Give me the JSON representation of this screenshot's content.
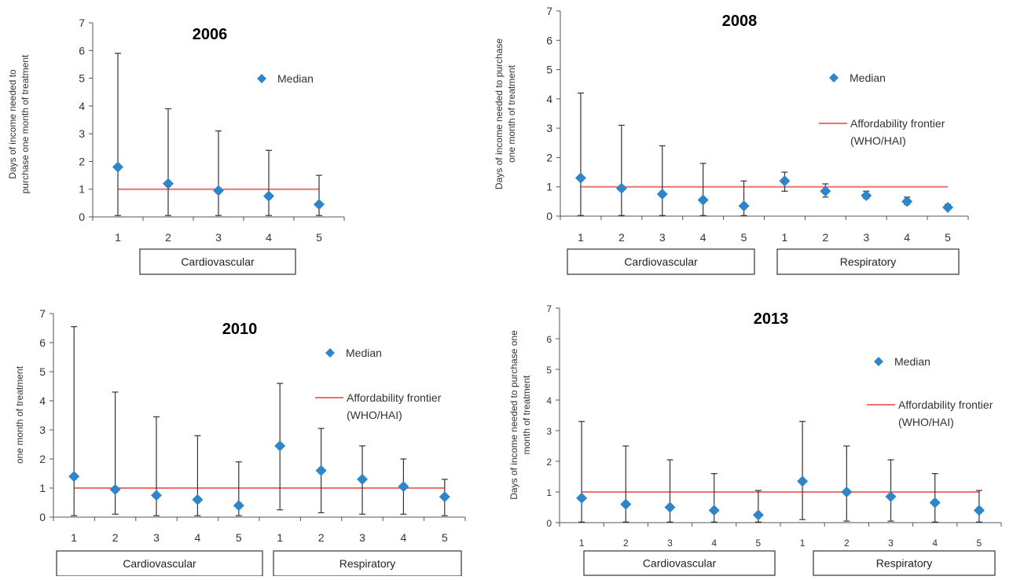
{
  "chart_data": [
    {
      "type": "scatter",
      "title": "2006",
      "ylabel": [
        "Days of income needed to",
        "purchase one  month of treatment"
      ],
      "ylim": [
        0,
        7
      ],
      "yticks": [
        0,
        1,
        2,
        3,
        4,
        5,
        6,
        7
      ],
      "categories": [
        "1",
        "2",
        "3",
        "4",
        "5"
      ],
      "groups": [
        {
          "label": "Cardiovascular",
          "size": 5
        }
      ],
      "series": [
        {
          "name": "Median",
          "values": [
            1.8,
            1.2,
            0.95,
            0.75,
            0.45
          ],
          "error_min": [
            0.05,
            0.05,
            0.05,
            0.05,
            0.05
          ],
          "error_max": [
            5.9,
            3.9,
            3.1,
            2.4,
            1.5
          ]
        }
      ],
      "reference_line": {
        "value": 1,
        "label": ""
      },
      "legend": {
        "median_label": "Median"
      },
      "colors": {
        "marker": "#2e86c8",
        "frontier": "#f07070",
        "error": "#333333"
      }
    },
    {
      "type": "scatter",
      "title": "2008",
      "ylabel": [
        "Days of income needed to purchase",
        "one month of treatment"
      ],
      "ylim": [
        0,
        7
      ],
      "yticks": [
        0,
        1,
        2,
        3,
        4,
        5,
        6,
        7
      ],
      "categories": [
        "1",
        "2",
        "3",
        "4",
        "5",
        "1",
        "2",
        "3",
        "4",
        "5"
      ],
      "groups": [
        {
          "label": "Cardiovascular",
          "size": 5
        },
        {
          "label": "Respiratory",
          "size": 5
        }
      ],
      "series": [
        {
          "name": "Median",
          "values": [
            1.3,
            0.95,
            0.75,
            0.55,
            0.35,
            1.2,
            0.85,
            0.7,
            0.5,
            0.3
          ],
          "error_min": [
            0.02,
            0.02,
            0.02,
            0.02,
            0.02,
            0.85,
            0.65,
            0.6,
            0.4,
            0.25
          ],
          "error_max": [
            4.2,
            3.1,
            2.4,
            1.8,
            1.2,
            1.5,
            1.1,
            0.85,
            0.65,
            0.4
          ]
        }
      ],
      "reference_line": {
        "value": 1,
        "label": "Affordability frontier\n(WHO/HAI)"
      },
      "legend": {
        "median_label": "Median",
        "frontier_label": [
          "Affordability frontier",
          "(WHO/HAI)"
        ]
      },
      "colors": {
        "marker": "#2e86c8",
        "frontier": "#f07070",
        "error": "#333333"
      }
    },
    {
      "type": "scatter",
      "title": "2010",
      "ylabel": [
        "one month of treatment"
      ],
      "ylim": [
        0,
        7
      ],
      "yticks": [
        0,
        1,
        2,
        3,
        4,
        5,
        6,
        7
      ],
      "categories": [
        "1",
        "2",
        "3",
        "4",
        "5",
        "1",
        "2",
        "3",
        "4",
        "5"
      ],
      "groups": [
        {
          "label": "Cardiovascular",
          "size": 5
        },
        {
          "label": "Respiratory",
          "size": 5
        }
      ],
      "series": [
        {
          "name": "Median",
          "values": [
            1.4,
            0.95,
            0.75,
            0.6,
            0.4,
            2.45,
            1.6,
            1.3,
            1.05,
            0.7
          ],
          "error_min": [
            0.05,
            0.1,
            0.05,
            0.05,
            0.05,
            0.25,
            0.15,
            0.1,
            0.1,
            0.05
          ],
          "error_max": [
            6.55,
            4.3,
            3.45,
            2.8,
            1.9,
            4.6,
            3.05,
            2.45,
            2.0,
            1.3
          ]
        }
      ],
      "reference_line": {
        "value": 1,
        "label": "Affordability frontier\n(WHO/HAI)"
      },
      "legend": {
        "median_label": "Median",
        "frontier_label": [
          "Affordability frontier",
          "(WHO/HAI)"
        ]
      },
      "colors": {
        "marker": "#2e86c8",
        "frontier": "#f07070",
        "error": "#333333"
      }
    },
    {
      "type": "scatter",
      "title": "2013",
      "ylabel": [
        "Days of income needed to purchase one",
        "month of treatment"
      ],
      "ylim": [
        0,
        7
      ],
      "yticks": [
        0,
        1,
        2,
        3,
        4,
        5,
        6,
        7
      ],
      "categories": [
        "1",
        "2",
        "3",
        "4",
        "5",
        "1",
        "2",
        "3",
        "4",
        "5"
      ],
      "groups": [
        {
          "label": "Cardiovascular",
          "size": 5
        },
        {
          "label": "Respiratory",
          "size": 5
        }
      ],
      "series": [
        {
          "name": "Median",
          "values": [
            0.8,
            0.6,
            0.5,
            0.4,
            0.25,
            1.35,
            1.0,
            0.85,
            0.65,
            0.4
          ],
          "error_min": [
            0.02,
            0.02,
            0.02,
            0.02,
            0.02,
            0.1,
            0.05,
            0.05,
            0.02,
            0.02
          ],
          "error_max": [
            3.3,
            2.5,
            2.05,
            1.6,
            1.05,
            3.3,
            2.5,
            2.05,
            1.6,
            1.05
          ]
        }
      ],
      "reference_line": {
        "value": 1,
        "label": "Affordability frontier\n(WHO/HAI)"
      },
      "legend": {
        "median_label": "Median",
        "frontier_label": [
          "Affordability frontier",
          "(WHO/HAI)"
        ]
      },
      "colors": {
        "marker": "#2e86c8",
        "frontier": "#f07070",
        "error": "#333333"
      }
    }
  ]
}
